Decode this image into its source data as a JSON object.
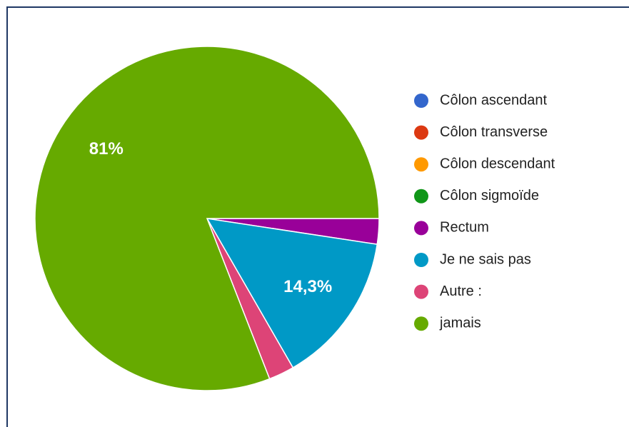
{
  "chart_data": {
    "type": "pie",
    "categories": [
      "Côlon ascendant",
      "Côlon transverse",
      "Côlon descendant",
      "Côlon sigmoïde",
      "Rectum",
      "Je ne sais pas",
      "Autre :",
      "jamais"
    ],
    "values": [
      0,
      0,
      0,
      0,
      2.4,
      14.3,
      2.4,
      81
    ],
    "value_labels": [
      null,
      null,
      null,
      null,
      null,
      "14,3%",
      null,
      "81%"
    ],
    "colors": [
      "#3366cc",
      "#dc3912",
      "#ff9900",
      "#109618",
      "#990099",
      "#0099c6",
      "#dd4477",
      "#66aa00"
    ],
    "legend": "right"
  }
}
